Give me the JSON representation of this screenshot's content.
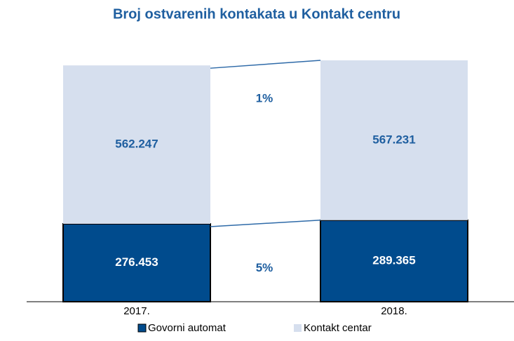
{
  "chart_data": {
    "type": "stacked_bar",
    "title": "Broj ostvarenih kontakata u Kontakt centru",
    "categories": [
      "2017.",
      "2018."
    ],
    "series": [
      {
        "name": "Govorni automat",
        "color": "#004b8d",
        "values": [
          276453,
          289365
        ],
        "value_labels": [
          "276.453",
          "289.365"
        ]
      },
      {
        "name": "Kontakt centar",
        "color": "#d6dfee",
        "values": [
          562247,
          567231
        ],
        "value_labels": [
          "562.247",
          "567.231"
        ]
      }
    ],
    "annotations": [
      "1%",
      "5%"
    ],
    "legend": "bottom"
  }
}
